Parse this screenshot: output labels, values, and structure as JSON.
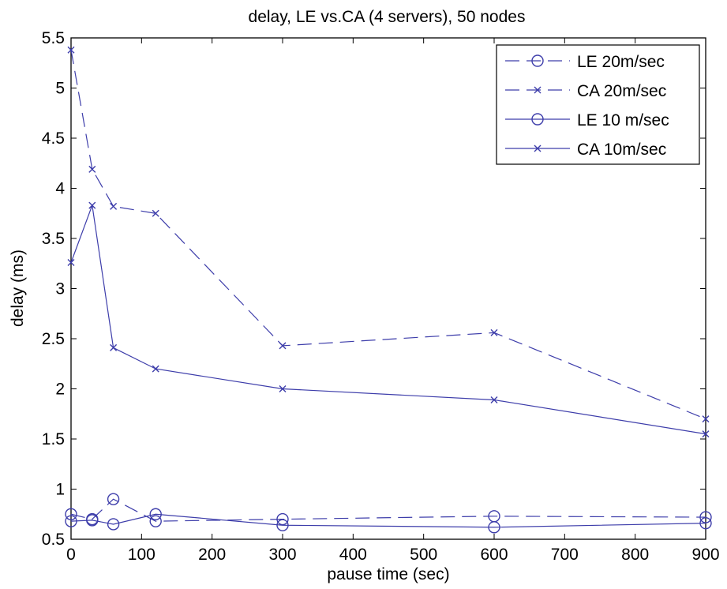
{
  "chart_data": {
    "type": "line",
    "title": "delay, LE vs.CA (4 servers), 50 nodes",
    "xlabel": "pause time (sec)",
    "ylabel": "delay (ms)",
    "xlim": [
      0,
      900
    ],
    "ylim": [
      0.5,
      5.5
    ],
    "xticks": [
      0,
      100,
      200,
      300,
      400,
      500,
      600,
      700,
      800,
      900
    ],
    "yticks": [
      0.5,
      1,
      1.5,
      2,
      2.5,
      3,
      3.5,
      4,
      4.5,
      5,
      5.5
    ],
    "xtick_labels": [
      "0",
      "100",
      "200",
      "300",
      "400",
      "500",
      "600",
      "700",
      "800",
      "900"
    ],
    "ytick_labels": [
      "0.5",
      "1",
      "1.5",
      "2",
      "2.5",
      "3",
      "3.5",
      "4",
      "4.5",
      "5",
      "5.5"
    ],
    "grid": false,
    "legend_position": "top-right",
    "line_color": "#3d3daa",
    "series": [
      {
        "name": "LE 20m/sec",
        "marker": "circle",
        "dash": "dashed",
        "x": [
          0,
          30,
          60,
          120,
          300,
          600,
          900
        ],
        "y": [
          0.75,
          0.7,
          0.9,
          0.68,
          0.7,
          0.73,
          0.72
        ]
      },
      {
        "name": "CA 20m/sec",
        "marker": "x",
        "dash": "dashed",
        "x": [
          0,
          30,
          60,
          120,
          300,
          600,
          900
        ],
        "y": [
          5.38,
          4.19,
          3.82,
          3.75,
          2.43,
          2.56,
          1.7
        ]
      },
      {
        "name": "LE 10 m/sec",
        "marker": "circle",
        "dash": "solid",
        "x": [
          0,
          30,
          60,
          120,
          300,
          600,
          900
        ],
        "y": [
          0.68,
          0.69,
          0.65,
          0.75,
          0.64,
          0.62,
          0.66
        ]
      },
      {
        "name": "CA 10m/sec",
        "marker": "x",
        "dash": "solid",
        "x": [
          0,
          30,
          60,
          120,
          300,
          600,
          900
        ],
        "y": [
          3.26,
          3.83,
          2.41,
          2.2,
          2.0,
          1.89,
          1.55
        ]
      }
    ]
  }
}
